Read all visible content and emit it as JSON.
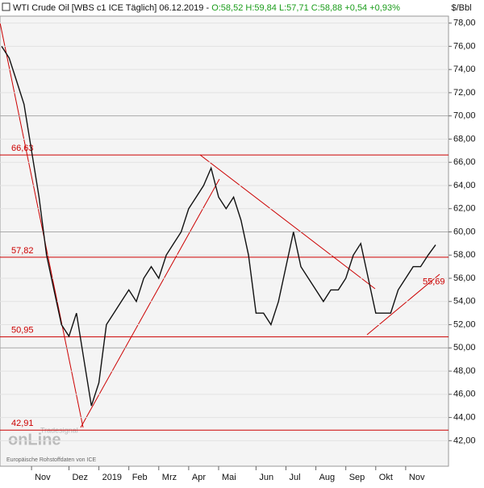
{
  "chart_data": {
    "type": "line",
    "title": "WTI Crude Oil [WBS c1 ICE  Täglich] 06.12.2019",
    "ohlc_text": [
      "O:58,52",
      "H:59,84",
      "L:57,71",
      "C:58,88",
      "+0,54",
      "+0,93%"
    ],
    "unit": "$/Bbl",
    "source": "Europäische Rohstoffdaten von ICE",
    "logo": [
      "Tradesignal",
      "onLine"
    ],
    "color": "#111111",
    "grid": true,
    "categories": [
      null,
      null,
      null,
      null,
      "Nov",
      null,
      null,
      null,
      null,
      "Dez",
      null,
      null,
      null,
      "2019",
      null,
      null,
      null,
      "Feb",
      null,
      null,
      null,
      "Mrz",
      null,
      null,
      null,
      "Apr",
      null,
      null,
      null,
      "Mai",
      null,
      null,
      null,
      null,
      "Jun",
      null,
      null,
      null,
      "Jul",
      null,
      null,
      null,
      "Aug",
      null,
      null,
      null,
      "Sep",
      null,
      null,
      null,
      "Okt",
      null,
      null,
      null,
      "Nov",
      null,
      null,
      null,
      null
    ],
    "values": [
      76,
      75,
      73,
      71,
      67,
      63,
      58,
      55,
      52,
      51,
      53,
      49,
      45,
      47,
      52,
      53,
      54,
      55,
      54,
      56,
      57,
      56,
      58,
      59,
      60,
      62,
      63,
      64,
      65.5,
      63,
      62,
      63,
      61,
      58,
      53,
      53,
      52,
      54,
      57,
      60,
      57,
      56,
      55,
      54,
      55,
      55,
      56,
      58,
      59,
      56,
      53,
      53,
      53,
      55,
      56,
      57,
      57,
      58,
      58.88
    ],
    "ylim": [
      39.8,
      78.6
    ],
    "yticks": [
      {
        "value": 42,
        "label": "42,00"
      },
      {
        "value": 44,
        "label": "44,00"
      },
      {
        "value": 46,
        "label": "46,00"
      },
      {
        "value": 48,
        "label": "48,00"
      },
      {
        "value": 50,
        "label": "50,00"
      },
      {
        "value": 52,
        "label": "52,00"
      },
      {
        "value": 54,
        "label": "54,00"
      },
      {
        "value": 56,
        "label": "56,00"
      },
      {
        "value": 58,
        "label": "58,00"
      },
      {
        "value": 60,
        "label": "60,00"
      },
      {
        "value": 62,
        "label": "62,00"
      },
      {
        "value": 64,
        "label": "64,00"
      },
      {
        "value": 66,
        "label": "66,00"
      },
      {
        "value": 68,
        "label": "68,00"
      },
      {
        "value": 70,
        "label": "70,00"
      },
      {
        "value": 72,
        "label": "72,00"
      },
      {
        "value": 74,
        "label": "74,00"
      },
      {
        "value": 76,
        "label": "76,00"
      },
      {
        "value": 78,
        "label": "78,00"
      }
    ],
    "levels": [
      {
        "value": 66.63,
        "label": "66,63"
      },
      {
        "value": 57.82,
        "label": "57,82"
      },
      {
        "value": 50.95,
        "label": "50,95"
      },
      {
        "value": 42.91,
        "label": "42,91"
      }
    ],
    "level_color": "#cc0000",
    "trend_label": {
      "value": 55.69,
      "label": "55,69"
    }
  }
}
